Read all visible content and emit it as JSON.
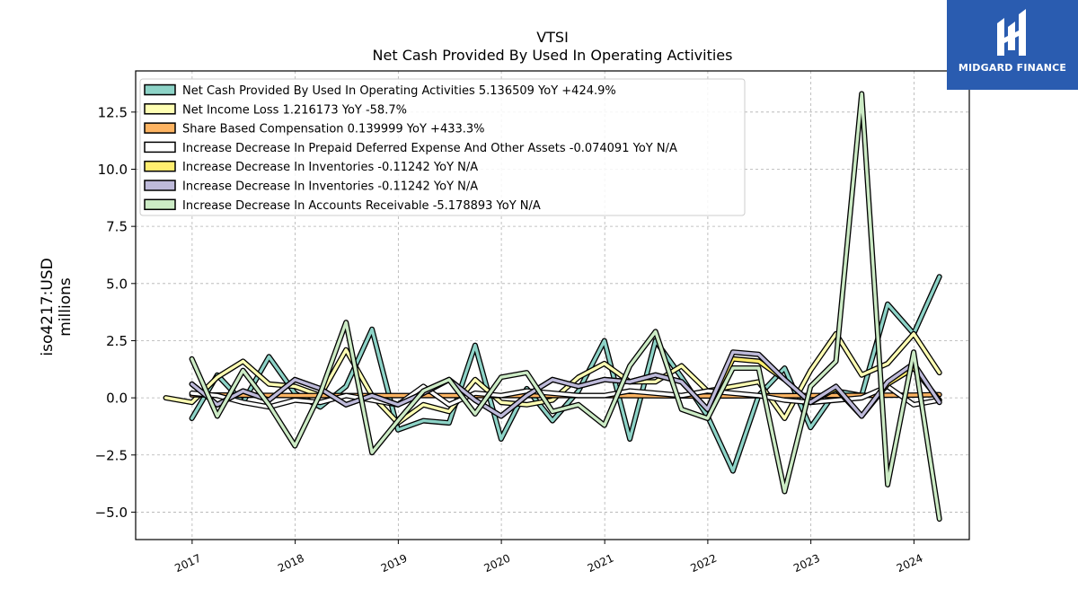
{
  "chart_data": {
    "type": "line",
    "title": "VTSI",
    "subtitle": "Net Cash Provided By Used In Operating Activities",
    "ylabel_line1": "iso4217:USD",
    "ylabel_line2": "millions",
    "xlim": [
      "2016-06-15",
      "2024-07-15"
    ],
    "ylim": [
      -6.2,
      14.3
    ],
    "y_ticks": [
      12.5,
      10.0,
      7.5,
      5.0,
      2.5,
      0.0,
      -2.5,
      -5.0
    ],
    "y_tick_labels": [
      "12.5",
      "10.0",
      "7.5",
      "5.0",
      "2.5",
      "0.0",
      "−2.5",
      "−5.0"
    ],
    "x_ticks": [
      "2017-01-01",
      "2018-01-01",
      "2019-01-01",
      "2020-01-01",
      "2021-01-01",
      "2022-01-01",
      "2023-01-01",
      "2024-01-01"
    ],
    "x_tick_labels": [
      "2017",
      "2018",
      "2019",
      "2020",
      "2021",
      "2022",
      "2023",
      "2024"
    ],
    "grid": true,
    "legend_position": "top-left",
    "series": [
      {
        "name": "Net Cash Provided By Used In Operating Activities  5.136509 YoY +424.9%",
        "color": "#8dd3c7",
        "x": [
          "2016-12-31",
          "2017-03-31",
          "2017-06-30",
          "2017-09-30",
          "2017-12-31",
          "2018-03-31",
          "2018-06-30",
          "2018-09-30",
          "2018-12-31",
          "2019-03-31",
          "2019-06-30",
          "2019-09-30",
          "2019-12-31",
          "2020-03-31",
          "2020-06-30",
          "2020-09-30",
          "2020-12-31",
          "2021-03-31",
          "2021-06-30",
          "2021-09-30",
          "2021-12-31",
          "2022-03-31",
          "2022-06-30",
          "2022-09-30",
          "2022-12-31",
          "2023-03-31",
          "2023-06-30",
          "2023-09-30",
          "2023-12-31",
          "2024-03-31"
        ],
        "y": [
          -0.9,
          1.0,
          -0.2,
          1.8,
          0.2,
          -0.4,
          0.5,
          3.0,
          -1.4,
          -1.0,
          -1.1,
          2.3,
          -1.8,
          0.4,
          -1.0,
          0.3,
          2.5,
          -1.8,
          2.5,
          0.9,
          -0.8,
          -3.2,
          0.1,
          1.3,
          -1.3,
          0.3,
          0.1,
          4.1,
          2.8,
          5.3
        ]
      },
      {
        "name": "Net Income Loss  1.216173 YoY -58.7%",
        "color": "#ffffb3",
        "x": [
          "2016-09-30",
          "2016-12-31",
          "2017-03-31",
          "2017-06-30",
          "2017-09-30",
          "2017-12-31",
          "2018-03-31",
          "2018-06-30",
          "2018-09-30",
          "2018-12-31",
          "2019-03-31",
          "2019-06-30",
          "2019-09-30",
          "2019-12-31",
          "2020-03-31",
          "2020-06-30",
          "2020-09-30",
          "2020-12-31",
          "2021-03-31",
          "2021-06-30",
          "2021-09-30",
          "2021-12-31",
          "2022-03-31",
          "2022-06-30",
          "2022-09-30",
          "2022-12-31",
          "2023-03-31",
          "2023-06-30",
          "2023-09-30",
          "2023-12-31",
          "2024-03-31"
        ],
        "y": [
          0.0,
          -0.2,
          0.9,
          1.6,
          0.6,
          0.5,
          0.1,
          2.1,
          0.1,
          -1.1,
          -0.3,
          -0.6,
          0.8,
          -0.2,
          -0.3,
          -0.1,
          0.9,
          1.5,
          0.7,
          0.7,
          1.4,
          0.3,
          0.5,
          0.7,
          -0.9,
          1.2,
          2.8,
          1.0,
          1.5,
          2.8,
          1.1
        ]
      },
      {
        "name": "Share Based Compensation  0.139999 YoY +433.3%",
        "color": "#fdb462",
        "x": [
          "2016-12-31",
          "2017-12-31",
          "2018-12-31",
          "2019-12-31",
          "2020-12-31",
          "2021-12-31",
          "2022-12-31",
          "2023-12-31",
          "2024-03-31"
        ],
        "y": [
          0.13,
          0.1,
          0.1,
          0.1,
          0.1,
          0.08,
          0.1,
          0.12,
          0.14
        ]
      },
      {
        "name": "Increase Decrease In Prepaid Deferred Expense And Other Assets  -0.074091 YoY N/A",
        "color": "#ffffff",
        "x": [
          "2016-12-31",
          "2017-03-31",
          "2017-06-30",
          "2017-09-30",
          "2017-12-31",
          "2018-03-31",
          "2018-06-30",
          "2018-09-30",
          "2018-12-31",
          "2019-03-31",
          "2019-06-30",
          "2019-09-30",
          "2019-12-31",
          "2020-03-31",
          "2020-06-30",
          "2020-09-30",
          "2020-12-31",
          "2021-03-31",
          "2021-06-30",
          "2021-09-30",
          "2021-12-31",
          "2022-03-31",
          "2022-06-30",
          "2022-09-30",
          "2022-12-31",
          "2023-03-31",
          "2023-06-30",
          "2023-09-30",
          "2023-12-31",
          "2024-03-31"
        ],
        "y": [
          0.2,
          0.1,
          -0.2,
          -0.4,
          -0.1,
          -0.2,
          0.1,
          -0.1,
          -0.3,
          0.5,
          -0.3,
          0.2,
          0.1,
          0.3,
          0.2,
          0.1,
          0.1,
          0.3,
          0.2,
          0.1,
          0.3,
          0.2,
          0.1,
          -0.1,
          -0.2,
          -0.1,
          0.0,
          0.5,
          -0.3,
          -0.1
        ]
      },
      {
        "name": "Increase Decrease In Inventories  -0.11242 YoY N/A",
        "color": "#ffed6f",
        "x": [
          "2016-12-31",
          "2017-03-31",
          "2017-06-30",
          "2017-09-30",
          "2017-12-31",
          "2018-03-31",
          "2018-06-30",
          "2018-09-30",
          "2018-12-31",
          "2019-03-31",
          "2019-06-30",
          "2019-09-30",
          "2019-12-31",
          "2020-03-31",
          "2020-06-30",
          "2020-09-30",
          "2020-12-31",
          "2021-03-31",
          "2021-06-30",
          "2021-09-30",
          "2021-12-31",
          "2022-03-31",
          "2022-06-30",
          "2022-09-30",
          "2022-12-31",
          "2023-03-31",
          "2023-06-30",
          "2023-09-30",
          "2023-12-31",
          "2024-03-31"
        ],
        "y": [
          0.6,
          -0.3,
          0.3,
          -0.1,
          0.8,
          0.4,
          -0.3,
          0.1,
          -0.3,
          0.2,
          0.8,
          -0.1,
          -0.8,
          0.1,
          0.8,
          0.5,
          0.8,
          0.7,
          1.0,
          0.7,
          -0.5,
          1.7,
          1.6,
          0.8,
          -0.2,
          0.4,
          -0.8,
          0.6,
          1.3,
          -0.1
        ]
      },
      {
        "name": "Increase Decrease In Inventories  -0.11242 YoY N/A",
        "color": "#bebada",
        "x": [
          "2016-12-31",
          "2017-03-31",
          "2017-06-30",
          "2017-09-30",
          "2017-12-31",
          "2018-03-31",
          "2018-06-30",
          "2018-09-30",
          "2018-12-31",
          "2019-03-31",
          "2019-06-30",
          "2019-09-30",
          "2019-12-31",
          "2020-03-31",
          "2020-06-30",
          "2020-09-30",
          "2020-12-31",
          "2021-03-31",
          "2021-06-30",
          "2021-09-30",
          "2021-12-31",
          "2022-03-31",
          "2022-06-30",
          "2022-09-30",
          "2022-12-31",
          "2023-03-31",
          "2023-06-30",
          "2023-09-30",
          "2023-12-31",
          "2024-03-31"
        ],
        "y": [
          0.6,
          -0.3,
          0.3,
          -0.1,
          0.8,
          0.4,
          -0.3,
          0.1,
          -0.3,
          0.2,
          0.8,
          -0.1,
          -0.8,
          0.1,
          0.8,
          0.5,
          0.8,
          0.7,
          1.0,
          0.7,
          -0.5,
          2.0,
          1.9,
          0.8,
          -0.2,
          0.5,
          -0.8,
          0.7,
          1.5,
          -0.2
        ]
      },
      {
        "name": "Increase Decrease In Accounts Receivable  -5.178893 YoY N/A",
        "color": "#ccebc5",
        "x": [
          "2016-12-31",
          "2017-03-31",
          "2017-06-30",
          "2017-09-30",
          "2017-12-31",
          "2018-03-31",
          "2018-06-30",
          "2018-09-30",
          "2018-12-31",
          "2019-03-31",
          "2019-06-30",
          "2019-09-30",
          "2019-12-31",
          "2020-03-31",
          "2020-06-30",
          "2020-09-30",
          "2020-12-31",
          "2021-03-31",
          "2021-06-30",
          "2021-09-30",
          "2021-12-31",
          "2022-03-31",
          "2022-06-30",
          "2022-09-30",
          "2022-12-31",
          "2023-03-31",
          "2023-06-30",
          "2023-09-30",
          "2023-12-31",
          "2024-03-31"
        ],
        "y": [
          1.7,
          -0.8,
          1.2,
          -0.3,
          -2.1,
          0.2,
          3.3,
          -2.4,
          -1.0,
          0.3,
          0.8,
          -0.7,
          0.9,
          1.1,
          -0.6,
          -0.3,
          -1.2,
          1.4,
          2.9,
          -0.5,
          -0.9,
          1.3,
          1.3,
          -4.1,
          0.5,
          1.6,
          13.3,
          -3.8,
          2.0,
          -5.3
        ]
      }
    ]
  },
  "logo": {
    "text": "MIDGARD FINANCE"
  }
}
